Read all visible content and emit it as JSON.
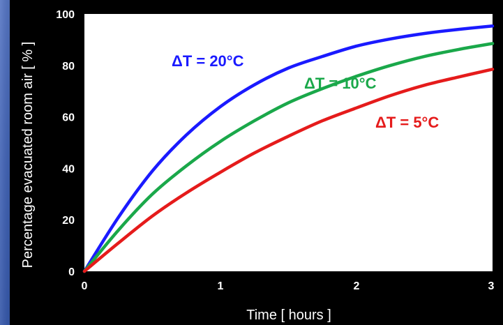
{
  "chart_data": {
    "type": "line",
    "title": "",
    "xlabel": "Time  [ hours ]",
    "ylabel": "Percentage evacuated room air  [ % ]",
    "xlim": [
      0,
      3
    ],
    "ylim": [
      0,
      100
    ],
    "x_ticks": [
      "0",
      "1",
      "2",
      "3"
    ],
    "y_ticks": [
      "0",
      "20",
      "40",
      "60",
      "80",
      "100"
    ],
    "grid": false,
    "legend": "none",
    "series": [
      {
        "name": "ΔT = 20°C",
        "color": "#1a1aff",
        "x": [
          0,
          0.25,
          0.5,
          0.75,
          1,
          1.25,
          1.5,
          1.75,
          2,
          2.25,
          2.5,
          2.75,
          3
        ],
        "values": [
          0,
          21,
          39,
          53,
          64,
          72.5,
          79,
          83.5,
          87.5,
          90.3,
          92.4,
          94,
          95.3
        ]
      },
      {
        "name": "ΔT = 10°C",
        "color": "#1aa84a",
        "x": [
          0,
          0.25,
          0.5,
          0.75,
          1,
          1.25,
          1.5,
          1.75,
          2,
          2.25,
          2.5,
          2.75,
          3
        ],
        "values": [
          0,
          16,
          30,
          41,
          50.5,
          58.5,
          65.5,
          71,
          75.8,
          80,
          83.5,
          86.2,
          88.5
        ]
      },
      {
        "name": "ΔT = 5°C",
        "color": "#e51b1b",
        "x": [
          0,
          0.25,
          0.5,
          0.75,
          1,
          1.25,
          1.5,
          1.75,
          2,
          2.25,
          2.5,
          2.75,
          3
        ],
        "values": [
          0,
          11,
          21.5,
          30.5,
          38.5,
          46,
          52.5,
          58.5,
          63.5,
          68.3,
          72.3,
          75.5,
          78.5
        ]
      }
    ]
  }
}
